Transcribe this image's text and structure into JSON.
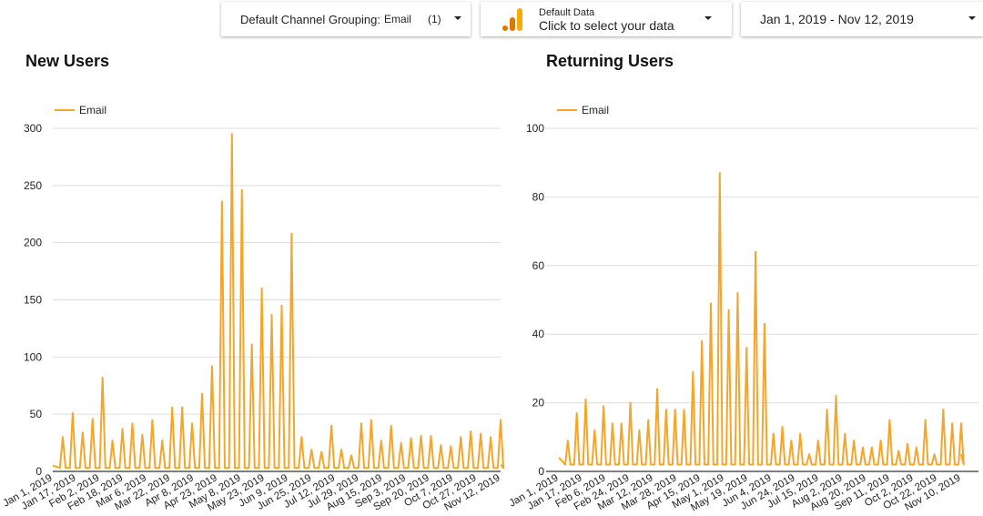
{
  "controls": {
    "channel_filter": {
      "label": "Default Channel Grouping:",
      "value": "Email",
      "count": "(1)"
    },
    "data_source": {
      "label": "Default Data",
      "value": "Click to select your data"
    },
    "date_range": {
      "value": "Jan 1, 2019 - Nov 12, 2019"
    }
  },
  "colors": {
    "series": "#f4a62a",
    "logo_dark": "#e37400",
    "logo_light": "#f9ab00"
  },
  "chart_data": [
    {
      "type": "line",
      "title": "New Users",
      "legend": {
        "entries": [
          "Email"
        ],
        "placement": "top-left"
      },
      "grid": true,
      "ylim": [
        0,
        300
      ],
      "yticks": [
        "0",
        "50",
        "100",
        "150",
        "200",
        "250",
        "300"
      ],
      "xticks": [
        "Jan 1, 2019",
        "Jan 17, 2019",
        "Feb 2, 2019",
        "Feb 18, 2019",
        "Mar 6, 2019",
        "Mar 22, 2019",
        "Apr 8, 2019",
        "Apr 23, 2019",
        "May 8, 2019",
        "May 23, 2019",
        "Jun 9, 2019",
        "Jun 25, 2019",
        "Jul 12, 2019",
        "Jul 29, 2019",
        "Aug 15, 2019",
        "Sep 3, 2019",
        "Sep 20, 2019",
        "Oct 7, 2019",
        "Oct 27, 2019",
        "Nov 12, 2019"
      ],
      "x_range": [
        "2019-01-01",
        "2019-11-12"
      ],
      "baseline": 3,
      "series": [
        {
          "name": "Email",
          "peak_dates_weekly_from": "2019-01-08",
          "values": [
            30,
            51,
            34,
            46,
            82,
            27,
            37,
            42,
            32,
            45,
            27,
            56,
            56,
            42,
            68,
            92,
            236,
            295,
            246,
            111,
            160,
            137,
            145,
            208,
            30,
            19,
            17,
            40,
            19,
            14,
            42,
            45,
            27,
            40,
            25,
            29,
            31,
            31,
            23,
            22,
            30,
            35,
            33,
            30,
            45
          ]
        }
      ]
    },
    {
      "type": "line",
      "title": "Returning Users",
      "legend": {
        "entries": [
          "Email"
        ],
        "placement": "top-left"
      },
      "grid": true,
      "ylim": [
        0,
        100
      ],
      "yticks": [
        "0",
        "20",
        "40",
        "60",
        "80",
        "100"
      ],
      "xticks": [
        "Jan 1, 2019",
        "Jan 17, 2019",
        "Feb 6, 2019",
        "Feb 24, 2019",
        "Mar 12, 2019",
        "Mar 28, 2019",
        "Apr 15, 2019",
        "May 1, 2019",
        "May 19, 2019",
        "Jun 4, 2019",
        "Jun 24, 2019",
        "Jul 15, 2019",
        "Aug 2, 2019",
        "Aug 20, 2019",
        "Sep 11, 2019",
        "Oct 2, 2019",
        "Oct 22, 2019",
        "Nov 10, 2019"
      ],
      "x_range": [
        "2019-01-01",
        "2019-11-12"
      ],
      "baseline": 2,
      "series": [
        {
          "name": "Email",
          "peak_dates_weekly_from": "2019-01-08",
          "values": [
            9,
            17,
            21,
            12,
            19,
            14,
            14,
            20,
            12,
            15,
            24,
            18,
            18,
            18,
            29,
            38,
            49,
            87,
            47,
            52,
            36,
            64,
            43,
            11,
            13,
            9,
            11,
            5,
            9,
            18,
            22,
            11,
            9,
            7,
            7,
            9,
            15,
            6,
            8,
            7,
            15,
            5,
            18,
            14,
            14
          ]
        }
      ]
    }
  ]
}
